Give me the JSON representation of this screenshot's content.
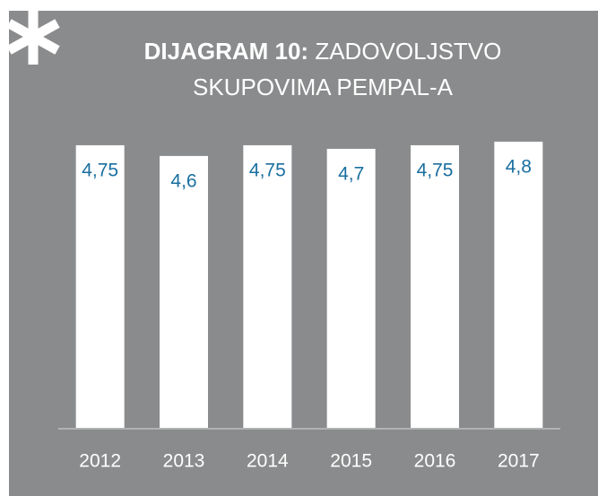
{
  "chart_data": {
    "type": "bar",
    "title_label": "DIJAGRAM 10:",
    "title": "ZADOVOLJSTVO SKUPOVIMA PEMPAL-A",
    "categories": [
      "2012",
      "2013",
      "2014",
      "2015",
      "2016",
      "2017"
    ],
    "values": [
      4.75,
      4.6,
      4.75,
      4.7,
      4.75,
      4.8
    ],
    "value_labels": [
      "4,75",
      "4,6",
      "4,75",
      "4,7",
      "4,75",
      "4,8"
    ],
    "color": "#ffffff",
    "label_color": "#1a6fa0",
    "ylim": [
      0.8,
      5.0
    ]
  }
}
